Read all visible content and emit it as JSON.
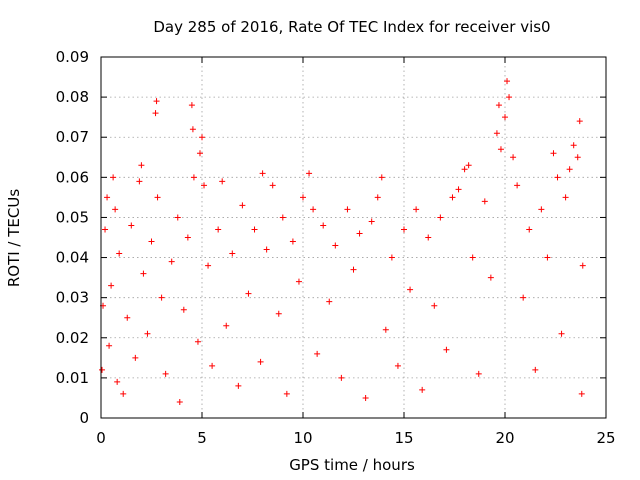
{
  "chart_data": {
    "type": "scatter",
    "title": "Day 285 of 2016, Rate Of TEC Index for receiver vis0",
    "xlabel": "GPS time / hours",
    "ylabel": "ROTI / TECUs",
    "xlim": [
      0,
      25
    ],
    "ylim": [
      0,
      0.09
    ],
    "x_ticks": [
      0,
      5,
      10,
      15,
      20,
      25
    ],
    "x_tick_labels": [
      "0",
      "5",
      "10",
      "15",
      "20",
      "25"
    ],
    "y_ticks": [
      0,
      0.01,
      0.02,
      0.03,
      0.04,
      0.05,
      0.06,
      0.07,
      0.08,
      0.09
    ],
    "y_tick_labels": [
      "0",
      "0.01",
      "0.02",
      "0.03",
      "0.04",
      "0.05",
      "0.06",
      "0.07",
      "0.08",
      "0.09"
    ],
    "grid": true,
    "marker": "+",
    "series": [
      {
        "name": "ROTI",
        "color": "#ff0000",
        "points": [
          [
            0.05,
            0.012
          ],
          [
            0.1,
            0.028
          ],
          [
            0.2,
            0.047
          ],
          [
            0.3,
            0.055
          ],
          [
            0.4,
            0.018
          ],
          [
            0.5,
            0.033
          ],
          [
            0.6,
            0.06
          ],
          [
            0.7,
            0.052
          ],
          [
            0.8,
            0.009
          ],
          [
            0.9,
            0.041
          ],
          [
            1.1,
            0.006
          ],
          [
            1.3,
            0.025
          ],
          [
            1.5,
            0.048
          ],
          [
            1.7,
            0.015
          ],
          [
            1.9,
            0.059
          ],
          [
            2.0,
            0.063
          ],
          [
            2.1,
            0.036
          ],
          [
            2.3,
            0.021
          ],
          [
            2.5,
            0.044
          ],
          [
            2.7,
            0.076
          ],
          [
            2.75,
            0.079
          ],
          [
            2.8,
            0.055
          ],
          [
            3.0,
            0.03
          ],
          [
            3.2,
            0.011
          ],
          [
            3.5,
            0.039
          ],
          [
            3.8,
            0.05
          ],
          [
            3.9,
            0.004
          ],
          [
            4.1,
            0.027
          ],
          [
            4.3,
            0.045
          ],
          [
            4.5,
            0.078
          ],
          [
            4.55,
            0.072
          ],
          [
            4.6,
            0.06
          ],
          [
            4.8,
            0.019
          ],
          [
            4.9,
            0.066
          ],
          [
            5.0,
            0.07
          ],
          [
            5.1,
            0.058
          ],
          [
            5.3,
            0.038
          ],
          [
            5.5,
            0.013
          ],
          [
            5.8,
            0.047
          ],
          [
            6.0,
            0.059
          ],
          [
            6.2,
            0.023
          ],
          [
            6.5,
            0.041
          ],
          [
            6.8,
            0.008
          ],
          [
            7.0,
            0.053
          ],
          [
            7.3,
            0.031
          ],
          [
            7.6,
            0.047
          ],
          [
            7.9,
            0.014
          ],
          [
            8.0,
            0.061
          ],
          [
            8.2,
            0.042
          ],
          [
            8.5,
            0.058
          ],
          [
            8.8,
            0.026
          ],
          [
            9.0,
            0.05
          ],
          [
            9.2,
            0.006
          ],
          [
            9.5,
            0.044
          ],
          [
            9.8,
            0.034
          ],
          [
            10.0,
            0.055
          ],
          [
            10.3,
            0.061
          ],
          [
            10.5,
            0.052
          ],
          [
            10.7,
            0.016
          ],
          [
            11.0,
            0.048
          ],
          [
            11.3,
            0.029
          ],
          [
            11.6,
            0.043
          ],
          [
            11.9,
            0.01
          ],
          [
            12.2,
            0.052
          ],
          [
            12.5,
            0.037
          ],
          [
            12.8,
            0.046
          ],
          [
            13.1,
            0.005
          ],
          [
            13.4,
            0.049
          ],
          [
            13.7,
            0.055
          ],
          [
            13.9,
            0.06
          ],
          [
            14.1,
            0.022
          ],
          [
            14.4,
            0.04
          ],
          [
            14.7,
            0.013
          ],
          [
            15.0,
            0.047
          ],
          [
            15.3,
            0.032
          ],
          [
            15.6,
            0.052
          ],
          [
            15.9,
            0.007
          ],
          [
            16.2,
            0.045
          ],
          [
            16.5,
            0.028
          ],
          [
            16.8,
            0.05
          ],
          [
            17.1,
            0.017
          ],
          [
            17.4,
            0.055
          ],
          [
            17.7,
            0.057
          ],
          [
            18.0,
            0.062
          ],
          [
            18.2,
            0.063
          ],
          [
            18.4,
            0.04
          ],
          [
            18.7,
            0.011
          ],
          [
            19.0,
            0.054
          ],
          [
            19.3,
            0.035
          ],
          [
            19.6,
            0.071
          ],
          [
            19.7,
            0.078
          ],
          [
            19.8,
            0.067
          ],
          [
            20.0,
            0.075
          ],
          [
            20.1,
            0.084
          ],
          [
            20.2,
            0.08
          ],
          [
            20.4,
            0.065
          ],
          [
            20.6,
            0.058
          ],
          [
            20.9,
            0.03
          ],
          [
            21.2,
            0.047
          ],
          [
            21.5,
            0.012
          ],
          [
            21.8,
            0.052
          ],
          [
            22.1,
            0.04
          ],
          [
            22.4,
            0.066
          ],
          [
            22.6,
            0.06
          ],
          [
            22.8,
            0.021
          ],
          [
            23.0,
            0.055
          ],
          [
            23.2,
            0.062
          ],
          [
            23.4,
            0.068
          ],
          [
            23.6,
            0.065
          ],
          [
            23.7,
            0.074
          ],
          [
            23.8,
            0.006
          ],
          [
            23.85,
            0.038
          ]
        ]
      }
    ]
  }
}
